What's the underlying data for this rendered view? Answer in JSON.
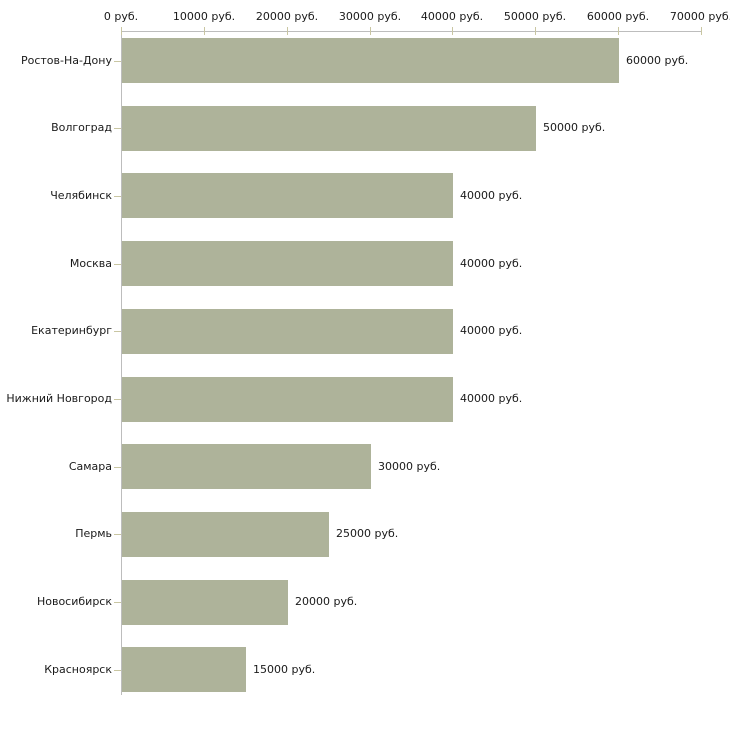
{
  "chart_data": {
    "type": "bar",
    "orientation": "horizontal",
    "title": "",
    "xlabel": "",
    "ylabel": "",
    "unit": "руб.",
    "xlim": [
      0,
      70000
    ],
    "grid": false,
    "legend": false,
    "categories": [
      "Ростов-На-Дону",
      "Волгоград",
      "Челябинск",
      "Москва",
      "Екатеринбург",
      "Нижний Новгород",
      "Самара",
      "Пермь",
      "Новосибирск",
      "Красноярск"
    ],
    "values": [
      60000,
      50000,
      40000,
      40000,
      40000,
      40000,
      30000,
      25000,
      20000,
      15000
    ],
    "value_labels": [
      "60000 руб.",
      "50000 руб.",
      "40000 руб.",
      "40000 руб.",
      "40000 руб.",
      "40000 руб.",
      "30000 руб.",
      "25000 руб.",
      "20000 руб.",
      "15000 руб."
    ],
    "x_ticks": [
      0,
      10000,
      20000,
      30000,
      40000,
      50000,
      60000,
      70000
    ],
    "x_tick_labels": [
      "0 руб.",
      "10000 руб.",
      "20000 руб.",
      "30000 руб.",
      "40000 руб.",
      "50000 руб.",
      "60000 руб.",
      "70000 руб."
    ],
    "colors": {
      "bar": "#aeb39a",
      "axis_line": "#bdbdbd",
      "tick_mark": "#c9c6a2",
      "text": "#1a1a1a",
      "background": "#ffffff"
    }
  }
}
